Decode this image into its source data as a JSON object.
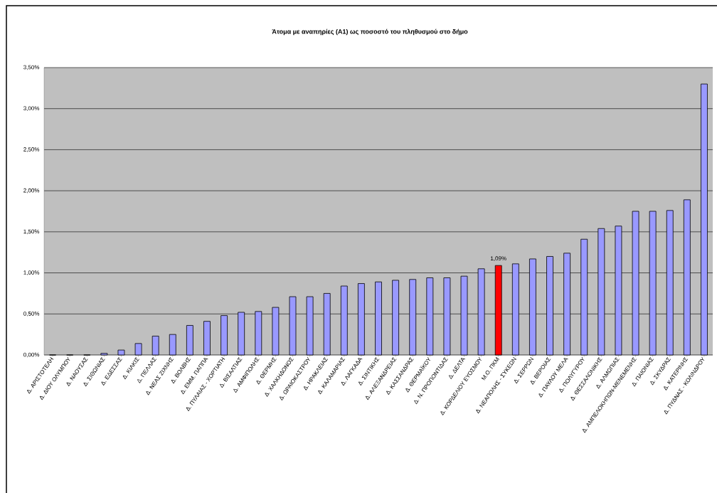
{
  "chart_data": {
    "type": "bar",
    "title": "Άτομα με αναπηρίες (Α1)  ως ποσοστό του πληθυσμού στο δήμο",
    "categories": [
      "Δ. ΑΡΙΣΤΟΤΕΛΗ",
      "Δ. ΔΙΟΥ ΟΛΥΜΠΟΥ",
      "Δ. ΝΑΟΥΣΑΣ",
      "Δ. ΣΙΘΩΝΙΑΣ",
      "Δ. ΕΔΕΣΣΑΣ",
      "Δ. ΚΙΛΚΙΣ",
      "Δ. ΠΕΛΛΑΣ",
      "Δ. ΝΕΑΣ ΖΙΧΝΗΣ",
      "Δ. ΒΟΛΒΗΣ",
      "Δ. ΕΜΜ. ΠΑΠΠΑ",
      "Δ. ΠΥΛΑΙΑΣ - ΧΟΡΤΙΑΤΗ",
      "Δ. ΒΙΣΑΛΤΙΑΣ",
      "Δ. ΑΜΦΙΠΟΛΗΣ",
      "Δ. ΘΕΡΜΗΣ",
      "Δ. ΧΑΛΚΗΔΟΝΟΣ",
      "Δ. ΩΡΑΙΟΚΑΣΤΡΟΥ",
      "Δ. ΗΡΑΚΛΕΙΑΣ",
      "Δ. ΚΑΛΑΜΑΡΙΑΣ",
      "Δ. ΛΑΓΚΑΔΑ",
      "Δ. ΣΙΝΤΙΚΗΣ",
      "Δ. ΑΛΕΞΑΝΔΡΕΙΑΣ",
      "Δ. ΚΑΣΣΑΝΔΡΑΣ",
      "Δ. ΘΕΡΜΑΪΚΟΥ",
      "Δ. Ν. ΠΡΟΠΟΝΤΙΔΑΣ",
      "Δ. ΔΕΛΤΑ",
      "Δ. ΚΟΡΔΕΛΙΟΥ ΕΥΟΣΜΟΥ",
      "Μ.Ο. ΠΚΜ",
      "Δ. ΝΕΑΠΟΛΗΣ - ΣΥΚΕΩΝ",
      "Δ. ΣΕΡΡΩΝ",
      "Δ. ΒΕΡΟΙΑΣ",
      "Δ. ΠΑΥΛΟΥ ΜΕΛΑ",
      "Δ. ΠΟΛΥΓΥΡΟΥ",
      "Δ. ΘΕΣΣΑΛΟΝΙΚΗΣ",
      "Δ. ΑΛΜΩΠΙΑΣ",
      "Δ. ΑΜΠΕΛΟΚΗΠΩΝ-ΜΕΝΕΜΕΝΗΣ",
      "Δ. ΠΑΙΟΝΙΑΣ",
      "Δ. ΣΚΥΔΡΑΣ",
      "Δ. ΚΑΤΕΡΙΝΗΣ",
      "Δ. ΠΥΔΝΑΣ - ΚΟΛΙΝΔΡΟΥ"
    ],
    "values": [
      0,
      0,
      0,
      0.02,
      0.06,
      0.14,
      0.23,
      0.25,
      0.36,
      0.41,
      0.48,
      0.52,
      0.53,
      0.58,
      0.71,
      0.71,
      0.75,
      0.84,
      0.87,
      0.89,
      0.91,
      0.92,
      0.94,
      0.94,
      0.96,
      1.05,
      1.09,
      1.11,
      1.17,
      1.2,
      1.24,
      1.41,
      1.54,
      1.57,
      1.75,
      1.75,
      1.76,
      1.89,
      3.3
    ],
    "colors": [
      "#9999ff",
      "#9999ff",
      "#9999ff",
      "#9999ff",
      "#9999ff",
      "#9999ff",
      "#9999ff",
      "#9999ff",
      "#9999ff",
      "#9999ff",
      "#9999ff",
      "#9999ff",
      "#9999ff",
      "#9999ff",
      "#9999ff",
      "#9999ff",
      "#9999ff",
      "#9999ff",
      "#9999ff",
      "#9999ff",
      "#9999ff",
      "#9999ff",
      "#9999ff",
      "#9999ff",
      "#9999ff",
      "#9999ff",
      "#ff0000",
      "#9999ff",
      "#9999ff",
      "#9999ff",
      "#9999ff",
      "#9999ff",
      "#9999ff",
      "#9999ff",
      "#9999ff",
      "#9999ff",
      "#9999ff",
      "#9999ff",
      "#9999ff"
    ],
    "value_labels": [
      null,
      null,
      null,
      null,
      null,
      null,
      null,
      null,
      null,
      null,
      null,
      null,
      null,
      null,
      null,
      null,
      null,
      null,
      null,
      null,
      null,
      null,
      null,
      null,
      null,
      null,
      "1,09%",
      null,
      null,
      null,
      null,
      null,
      null,
      null,
      null,
      null,
      null,
      null,
      null
    ],
    "ylim": [
      0,
      3.5
    ],
    "yticks": [
      {
        "value": 0,
        "label": "0,00%"
      },
      {
        "value": 0.5,
        "label": "0,50%"
      },
      {
        "value": 1,
        "label": "1,00%"
      },
      {
        "value": 1.5,
        "label": "1,50%"
      },
      {
        "value": 2,
        "label": "2,00%"
      },
      {
        "value": 2.5,
        "label": "2,50%"
      },
      {
        "value": 3,
        "label": "3,00%"
      },
      {
        "value": 3.5,
        "label": "3,50%"
      }
    ],
    "grid": "y"
  }
}
